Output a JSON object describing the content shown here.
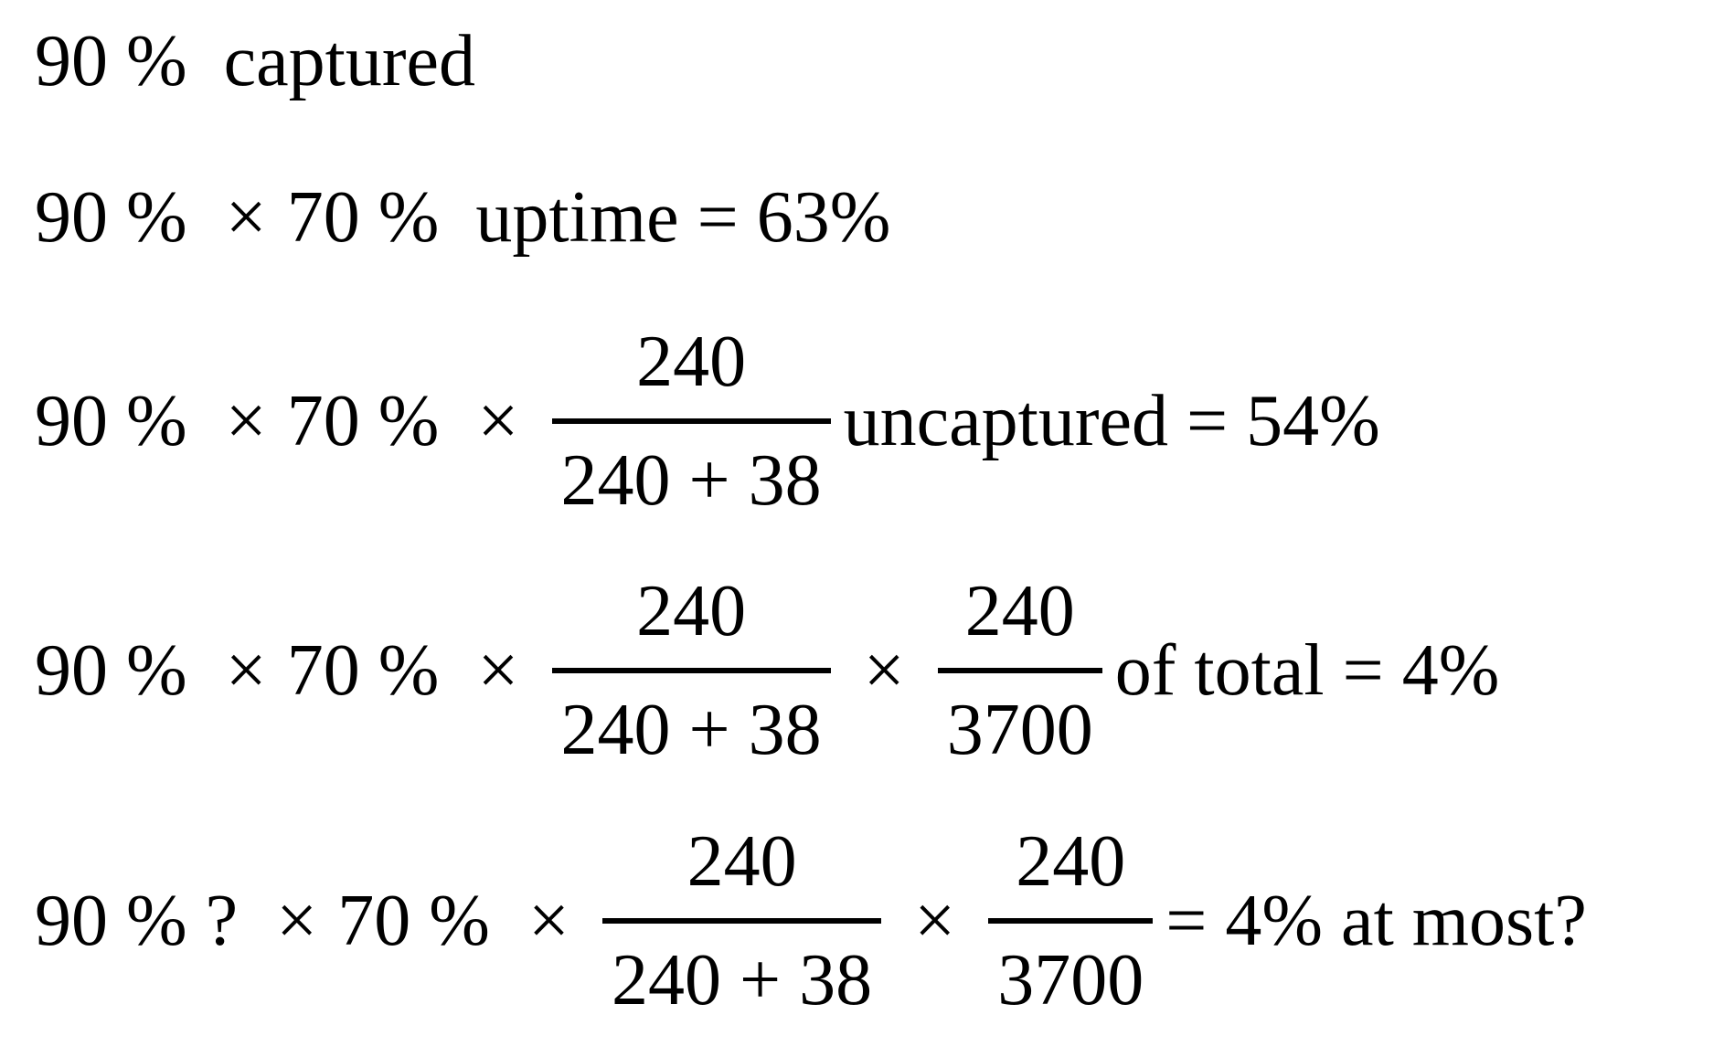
{
  "rows": [
    {
      "items": [
        {
          "type": "text",
          "value": "90 %  captured"
        }
      ]
    },
    {
      "items": [
        {
          "type": "text",
          "value": "90 % "
        },
        {
          "type": "op",
          "value": "×"
        },
        {
          "type": "text",
          "value": "70 %  uptime = 63%"
        }
      ]
    },
    {
      "items": [
        {
          "type": "text",
          "value": "90 % "
        },
        {
          "type": "op",
          "value": "×"
        },
        {
          "type": "text",
          "value": "70 % "
        },
        {
          "type": "op",
          "value": "×"
        },
        {
          "type": "frac",
          "num": "240",
          "den": "240 + 38"
        },
        {
          "type": "text",
          "value": "uncaptured = 54%"
        }
      ]
    },
    {
      "items": [
        {
          "type": "text",
          "value": "90 % "
        },
        {
          "type": "op",
          "value": "×"
        },
        {
          "type": "text",
          "value": "70 % "
        },
        {
          "type": "op",
          "value": "×"
        },
        {
          "type": "frac",
          "num": "240",
          "den": "240 + 38"
        },
        {
          "type": "op",
          "value": "×"
        },
        {
          "type": "frac",
          "num": "240",
          "den": "3700"
        },
        {
          "type": "text",
          "value": "of total = 4%"
        }
      ]
    },
    {
      "items": [
        {
          "type": "text",
          "value": "90 % ? "
        },
        {
          "type": "op",
          "value": "×"
        },
        {
          "type": "text",
          "value": "70 % "
        },
        {
          "type": "op",
          "value": "×"
        },
        {
          "type": "frac",
          "num": "240",
          "den": "240 + 38"
        },
        {
          "type": "op",
          "value": "×"
        },
        {
          "type": "frac",
          "num": "240",
          "den": "3700"
        },
        {
          "type": "text",
          "value": "= 4% at most?"
        }
      ]
    }
  ]
}
